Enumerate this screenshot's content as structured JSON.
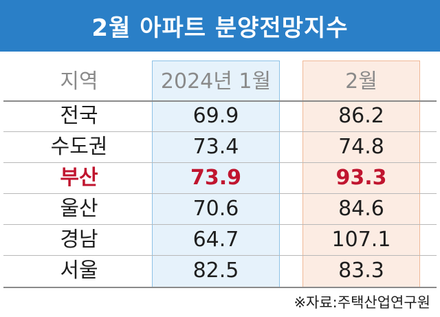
{
  "title": "2월 아파트 분양전망지수",
  "columns": [
    "지역",
    "2024년 1월",
    "2월"
  ],
  "rows": [
    {
      "region": "전국",
      "jan": "69.9",
      "feb": "86.2",
      "highlight": false
    },
    {
      "region": "수도권",
      "jan": "73.4",
      "feb": "74.8",
      "highlight": false
    },
    {
      "region": "부산",
      "jan": "73.9",
      "feb": "93.3",
      "highlight": true
    },
    {
      "region": "울산",
      "jan": "70.6",
      "feb": "84.6",
      "highlight": false
    },
    {
      "region": "경남",
      "jan": "64.7",
      "feb": "107.1",
      "highlight": false
    },
    {
      "region": "서울",
      "jan": "82.5",
      "feb": "83.3",
      "highlight": false
    }
  ],
  "source": "※자료:주택산업연구원",
  "colors": {
    "title_bg": "#2a7fc7",
    "jan_column_bg": "#e6f2fb",
    "feb_column_bg": "#fcece3",
    "highlight": "#c0152f"
  },
  "chart_data": {
    "type": "table",
    "title": "2월 아파트 분양전망지수",
    "columns": [
      "지역",
      "2024년 1월",
      "2월"
    ],
    "categories": [
      "전국",
      "수도권",
      "부산",
      "울산",
      "경남",
      "서울"
    ],
    "series": [
      {
        "name": "2024년 1월",
        "values": [
          69.9,
          73.4,
          73.9,
          70.6,
          64.7,
          82.5
        ]
      },
      {
        "name": "2월",
        "values": [
          86.2,
          74.8,
          93.3,
          84.6,
          107.1,
          83.3
        ]
      }
    ]
  }
}
